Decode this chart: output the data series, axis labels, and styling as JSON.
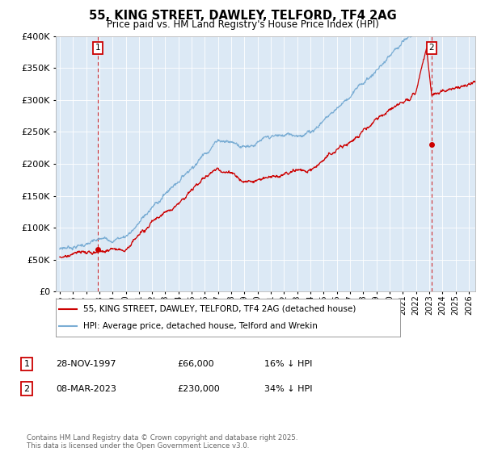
{
  "title": "55, KING STREET, DAWLEY, TELFORD, TF4 2AG",
  "subtitle": "Price paid vs. HM Land Registry's House Price Index (HPI)",
  "legend_label_red": "55, KING STREET, DAWLEY, TELFORD, TF4 2AG (detached house)",
  "legend_label_blue": "HPI: Average price, detached house, Telford and Wrekin",
  "annotation1_date": "28-NOV-1997",
  "annotation1_price": "£66,000",
  "annotation1_hpi": "16% ↓ HPI",
  "annotation2_date": "08-MAR-2023",
  "annotation2_price": "£230,000",
  "annotation2_hpi": "34% ↓ HPI",
  "footnote": "Contains HM Land Registry data © Crown copyright and database right 2025.\nThis data is licensed under the Open Government Licence v3.0.",
  "ylim": [
    0,
    400000
  ],
  "red_color": "#cc0000",
  "blue_color": "#7aadd4",
  "background_color": "#ffffff",
  "plot_bg_color": "#dce9f5",
  "grid_color": "#ffffff",
  "point1_x": 1997.91,
  "point1_y": 66000,
  "point2_x": 2023.18,
  "point2_y": 230000,
  "xmin": 1995.0,
  "xmax": 2026.5
}
